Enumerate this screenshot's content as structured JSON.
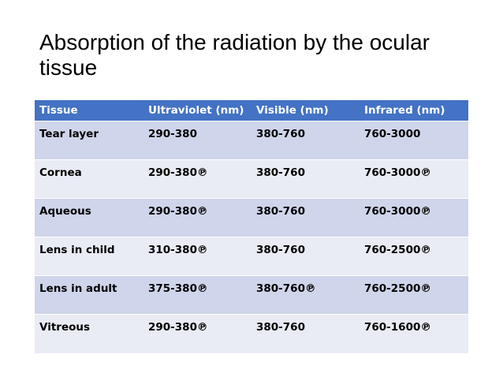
{
  "title": "Absorption of the radiation by the ocular tissue",
  "table": {
    "header": [
      "Tissue",
      "Ultraviolet (nm)",
      "Visible (nm)",
      "Infrared (nm)"
    ],
    "rows": [
      [
        "Tear layer",
        "290-380",
        "380-760",
        "760-3000"
      ],
      [
        "Cornea",
        "290-380℗",
        "380-760",
        "760-3000℗"
      ],
      [
        "Aqueous",
        "290-380℗",
        "380-760",
        "760-3000℗"
      ],
      [
        "Lens in child",
        "310-380℗",
        "380-760",
        "760-2500℗"
      ],
      [
        "Lens in adult",
        "375-380℗",
        "380-760℗",
        "760-2500℗"
      ],
      [
        "Vitreous",
        "290-380℗",
        "380-760",
        "760-1600℗"
      ]
    ]
  }
}
